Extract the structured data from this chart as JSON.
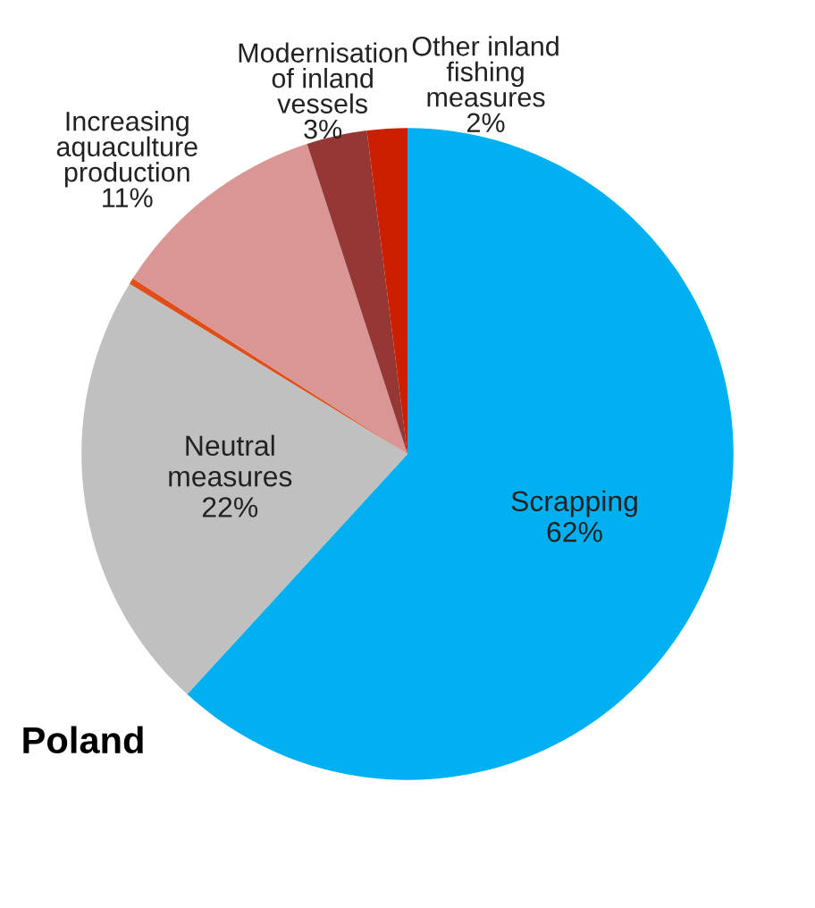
{
  "chart_data": {
    "type": "pie",
    "title": "Poland",
    "categories": [
      "Scrapping",
      "Neutral\nmeasures",
      null,
      "Increasing\naquaculture\nproduction",
      "Modernisation\nof inland\nvessels",
      "Other inland\nfishing\nmeasures"
    ],
    "values": [
      62,
      22,
      0.3,
      11,
      3,
      2
    ],
    "value_labels": [
      "62%",
      "22%",
      null,
      "11%",
      "3%",
      "2%"
    ],
    "colors": [
      "#00b0f0",
      "#c0c0c0",
      "#e04f1a",
      "#d99694",
      "#953735",
      "#cc1f00"
    ]
  }
}
